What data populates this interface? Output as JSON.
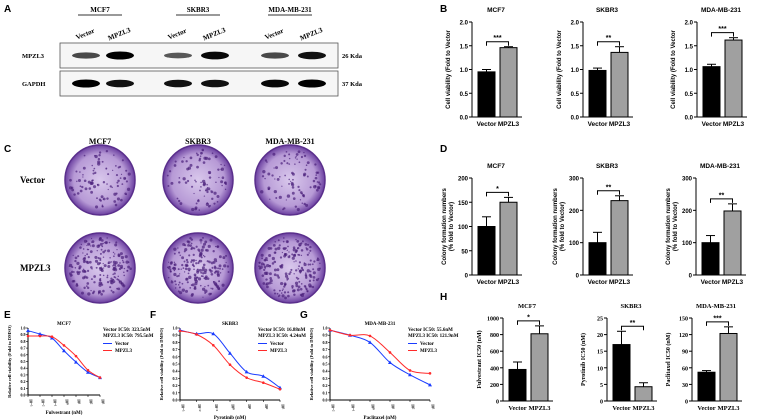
{
  "panel_labels": {
    "A": "A",
    "B": "B",
    "C": "C",
    "D": "D",
    "E": "E",
    "F": "F",
    "G": "G",
    "H": "H"
  },
  "blot": {
    "cell_lines": [
      "MCF7",
      "SKBR3",
      "MDA-MB-231"
    ],
    "lanes": [
      "Vector",
      "MPZL3",
      "Vector",
      "MPZL3",
      "Vector",
      "MPZL3"
    ],
    "rows": [
      {
        "label": "MPZL3",
        "size": "26 Kda",
        "intensity": [
          0.55,
          1.0,
          0.45,
          0.95,
          0.55,
          0.9
        ]
      },
      {
        "label": "GAPDH",
        "size": "37 Kda",
        "intensity": [
          1.0,
          0.9,
          0.9,
          0.9,
          0.95,
          1.0
        ]
      }
    ]
  },
  "colony": {
    "cell_lines": [
      "MCF7",
      "SKBR3",
      "MDA-MB-231"
    ],
    "rows": [
      "Vector",
      "MPZL3"
    ],
    "plate_color": "#6b3fa0"
  },
  "colors": {
    "vector_bar": "#000000",
    "mpzl3_bar": "#a0a0a0",
    "vector_line": "#1a3cff",
    "mpzl3_line": "#ff2a2a"
  },
  "chart_data": [
    {
      "id": "B1",
      "type": "bar",
      "title": "MCF7",
      "ylabel": "Cell viability (Fold to Vector",
      "categories": [
        "Vector",
        "MPZL3"
      ],
      "values": [
        0.95,
        1.46
      ],
      "errors": [
        0.05,
        0.02
      ],
      "significance": "***",
      "ylim": [
        0,
        2
      ],
      "yticks": [
        "0.0",
        "0.5",
        "1.0",
        "1.5",
        "2.0"
      ]
    },
    {
      "id": "B2",
      "type": "bar",
      "title": "SKBR3",
      "ylabel": "Cell viability (Fold to Vector",
      "categories": [
        "Vector",
        "MPZL3"
      ],
      "values": [
        0.98,
        1.36
      ],
      "errors": [
        0.05,
        0.12
      ],
      "significance": "**",
      "ylim": [
        0,
        2
      ],
      "yticks": [
        "0.0",
        "0.5",
        "1.0",
        "1.5",
        "2.0"
      ]
    },
    {
      "id": "B3",
      "type": "bar",
      "title": "MDA-MB-231",
      "ylabel": "Cell viability (Fold to Vector",
      "categories": [
        "Vector",
        "MPZL3"
      ],
      "values": [
        1.06,
        1.62
      ],
      "errors": [
        0.05,
        0.05
      ],
      "significance": "***",
      "ylim": [
        0,
        2
      ],
      "yticks": [
        "0.0",
        "0.5",
        "1.0",
        "1.5",
        "2.0"
      ]
    },
    {
      "id": "D1",
      "type": "bar",
      "title": "MCF7",
      "ylabel": "Colony formation numbers (% fold to Vector)",
      "categories": [
        "Vector",
        "MPZL3"
      ],
      "values": [
        100,
        150
      ],
      "errors": [
        20,
        10
      ],
      "significance": "*",
      "ylim": [
        0,
        200
      ],
      "yticks": [
        "0",
        "50",
        "100",
        "150",
        "200"
      ]
    },
    {
      "id": "D2",
      "type": "bar",
      "title": "SKBR3",
      "ylabel": "Colony formation numbers (% fold to Vector)",
      "categories": [
        "Vector",
        "MPZL3"
      ],
      "values": [
        100,
        230
      ],
      "errors": [
        32,
        15
      ],
      "significance": "**",
      "ylim": [
        0,
        300
      ],
      "yticks": [
        "0",
        "100",
        "200",
        "300"
      ]
    },
    {
      "id": "D3",
      "type": "bar",
      "title": "MDA-MB-231",
      "ylabel": "Colony formation numbers (% fold to Vector)",
      "categories": [
        "Vector",
        "MPZL3"
      ],
      "values": [
        100,
        198
      ],
      "errors": [
        22,
        22
      ],
      "significance": "**",
      "ylim": [
        0,
        300
      ],
      "yticks": [
        "0",
        "100",
        "200",
        "300"
      ]
    },
    {
      "id": "E",
      "type": "line",
      "title": "MCF7",
      "xlabel": "Fulvestrant (nM)",
      "ylabel": "Relative cell viability (Fold to DMSO)",
      "xscale": "log",
      "xticks": [
        "10⁻³",
        "10⁻²",
        "10⁻¹",
        "10⁰",
        "10¹",
        "10²",
        "10³"
      ],
      "x": [
        0.001,
        0.01,
        0.1,
        1,
        10,
        100,
        1000
      ],
      "ylim": [
        0,
        1
      ],
      "yticks": [
        "0.0",
        "0.1",
        "0.2",
        "0.3",
        "0.4",
        "0.5",
        "0.6",
        "0.7",
        "0.8",
        "0.9",
        "1.0"
      ],
      "annotation": [
        "Vector IC50: 323.5nM",
        "MPZL3 IC50: 795.5nM"
      ],
      "series": [
        {
          "name": "Vector",
          "values": [
            0.96,
            0.91,
            0.85,
            0.66,
            0.49,
            0.34,
            0.26
          ]
        },
        {
          "name": "MPZL3",
          "values": [
            0.88,
            0.88,
            0.87,
            0.74,
            0.58,
            0.37,
            0.26
          ]
        }
      ]
    },
    {
      "id": "F",
      "type": "line",
      "title": "SKBR3",
      "xlabel": "Pyrotinib (nM)",
      "ylabel": "Relative cell viability (Fold to DMSO)",
      "xscale": "log",
      "xticks": [
        "10⁻³",
        "10⁻²",
        "10⁻¹",
        "10⁰",
        "10¹",
        "10²",
        "10³"
      ],
      "x": [
        0.001,
        0.01,
        0.1,
        1,
        10,
        100,
        1000
      ],
      "ylim": [
        0,
        1
      ],
      "yticks": [
        "0.0",
        "0.1",
        "0.2",
        "0.3",
        "0.4",
        "0.5",
        "0.6",
        "0.7",
        "0.8",
        "0.9",
        "1.0"
      ],
      "annotation": [
        "Vector IC50: 16.88nM",
        "MPZL3 IC50: 4.24nM"
      ],
      "series": [
        {
          "name": "Vector",
          "values": [
            0.97,
            0.92,
            0.92,
            0.65,
            0.39,
            0.33,
            0.17
          ]
        },
        {
          "name": "MPZL3",
          "values": [
            0.96,
            0.91,
            0.76,
            0.49,
            0.31,
            0.24,
            0.15
          ]
        }
      ]
    },
    {
      "id": "G",
      "type": "line",
      "title": "MDA-MB-231",
      "xlabel": "Paclitaxel (nM)",
      "ylabel": "Relative cell viability (Fold to DMSO)",
      "xscale": "log",
      "xticks": [
        "10⁻²",
        "10⁻¹",
        "10⁰",
        "10¹",
        "10²",
        "10³"
      ],
      "x": [
        0.01,
        0.1,
        1,
        10,
        100,
        1000
      ],
      "ylim": [
        0,
        1
      ],
      "yticks": [
        "0.0",
        "0.1",
        "0.2",
        "0.3",
        "0.4",
        "0.5",
        "0.6",
        "0.7",
        "0.8",
        "0.9",
        "1.0"
      ],
      "annotation": [
        "Vector IC50: 55.6nM",
        "MPZL3 IC50: 121.9nM"
      ],
      "series": [
        {
          "name": "Vector",
          "values": [
            0.97,
            0.9,
            0.8,
            0.52,
            0.35,
            0.21
          ]
        },
        {
          "name": "MPZL3",
          "values": [
            0.97,
            0.9,
            0.89,
            0.66,
            0.41,
            0.37
          ]
        }
      ]
    },
    {
      "id": "H1",
      "type": "bar",
      "title": "MCF7",
      "ylabel": "Fulvestrant IC50 (nM)",
      "categories": [
        "Vector",
        "MPZL3"
      ],
      "values": [
        380,
        810
      ],
      "errors": [
        90,
        95
      ],
      "significance": "*",
      "ylim": [
        0,
        1000
      ],
      "yticks": [
        "0",
        "200",
        "400",
        "600",
        "800",
        "1000"
      ]
    },
    {
      "id": "H2",
      "type": "bar",
      "title": "SKBR3",
      "ylabel": "Pyrotinib IC50 (nM)",
      "categories": [
        "Vector",
        "MPZL3"
      ],
      "values": [
        17,
        4.3
      ],
      "errors": [
        4,
        1.2
      ],
      "significance": "**",
      "ylim": [
        0,
        25
      ],
      "yticks": [
        "0",
        "5",
        "10",
        "15",
        "20",
        "25"
      ]
    },
    {
      "id": "H3",
      "type": "bar",
      "title": "MDA-MB-231",
      "ylabel": "Paclitaxel IC50 (nM)",
      "categories": [
        "Vector",
        "MPZL3"
      ],
      "values": [
        52,
        122
      ],
      "errors": [
        3,
        12
      ],
      "significance": "***",
      "ylim": [
        0,
        150
      ],
      "yticks": [
        "0",
        "30",
        "60",
        "90",
        "120",
        "150"
      ]
    }
  ]
}
